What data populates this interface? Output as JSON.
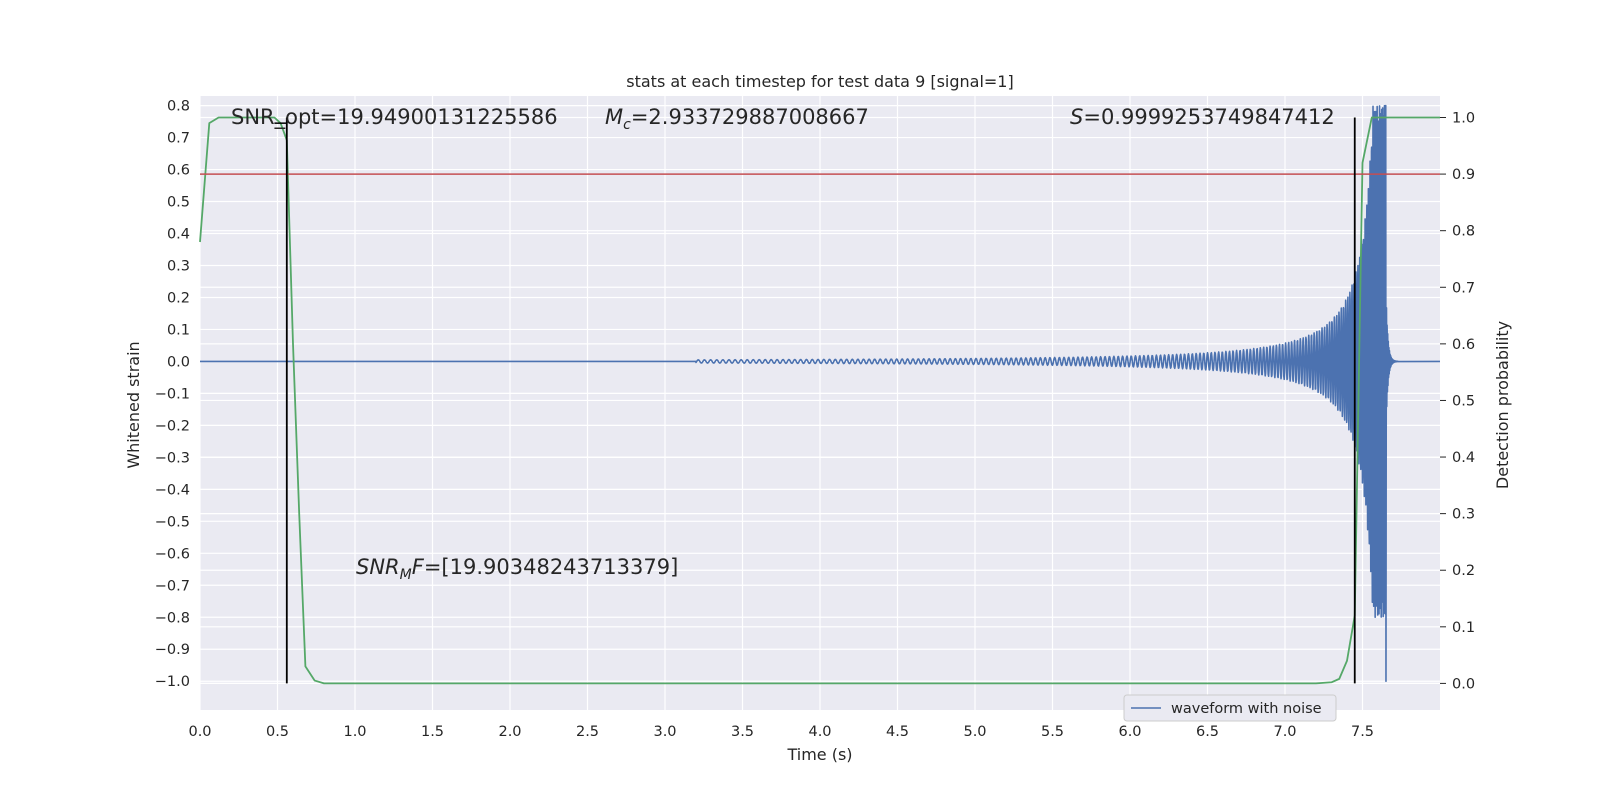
{
  "chart_data": {
    "type": "line",
    "title": "stats at each timestep for test data 9 [signal=1]",
    "xlabel": "Time (s)",
    "ylabel": "Whitened strain",
    "y2label": "Detection probability",
    "xlim": [
      0.0,
      8.0
    ],
    "ylim": [
      -1.09,
      0.83
    ],
    "y2lim": [
      -0.047,
      1.038
    ],
    "x_ticks": [
      "0.0",
      "0.5",
      "1.0",
      "1.5",
      "2.0",
      "2.5",
      "3.0",
      "3.5",
      "4.0",
      "4.5",
      "5.0",
      "5.5",
      "6.0",
      "6.5",
      "7.0",
      "7.5"
    ],
    "y_ticks": [
      "0.8",
      "0.7",
      "0.6",
      "0.5",
      "0.4",
      "0.3",
      "0.2",
      "0.1",
      "0.0",
      "−0.1",
      "−0.2",
      "−0.3",
      "−0.4",
      "−0.5",
      "−0.6",
      "−0.7",
      "−0.8",
      "−0.9",
      "−1.0"
    ],
    "y2_ticks": [
      "1.0",
      "0.9",
      "0.8",
      "0.7",
      "0.6",
      "0.5",
      "0.4",
      "0.3",
      "0.2",
      "0.1",
      "0.0"
    ],
    "grid": true,
    "legend": {
      "position": "lower-right",
      "entries": [
        "waveform with noise"
      ]
    },
    "annotations": {
      "snr_opt": "SNR_opt=19.94900131225586",
      "mc_symbol": "M",
      "mc_sub": "c",
      "mc_value": "=2.933729887008667",
      "s_symbol": "S",
      "s_value": "=0.9999253749847412",
      "snrmf_a": "SNR",
      "snrmf_sub": "M",
      "snrmf_b": "F",
      "snrmf_value": "=[19.90348243713379]"
    },
    "threshold_line": {
      "y2": 0.9,
      "color": "#c44e52"
    },
    "vertical_lines": [
      0.56,
      7.45
    ],
    "series": [
      {
        "name": "waveform with noise",
        "axis": "left",
        "color": "#4c72b0",
        "kind": "chirp",
        "start_time": 3.2,
        "merger_time": 7.65,
        "end_time": 8.0,
        "amplitude_at_merger": 0.8,
        "min_amplitude_at_merger": -1.0
      },
      {
        "axis": "right",
        "color": "#55a868",
        "x": [
          0.0,
          0.06,
          0.12,
          0.2,
          0.3,
          0.4,
          0.48,
          0.52,
          0.56,
          0.6,
          0.64,
          0.68,
          0.74,
          0.8,
          1.0,
          2.0,
          3.0,
          4.0,
          5.0,
          6.0,
          6.5,
          7.0,
          7.2,
          7.3,
          7.35,
          7.4,
          7.45,
          7.5,
          7.56,
          7.62,
          7.7,
          8.0
        ],
        "y": [
          0.78,
          0.99,
          1.0,
          1.0,
          1.0,
          1.0,
          1.0,
          0.99,
          0.96,
          0.6,
          0.3,
          0.03,
          0.005,
          0.0,
          0.0,
          0.0,
          0.0,
          0.0,
          0.0,
          0.0,
          0.0,
          0.0,
          0.0,
          0.002,
          0.008,
          0.04,
          0.12,
          0.92,
          1.0,
          1.0,
          1.0,
          1.0
        ]
      }
    ]
  }
}
